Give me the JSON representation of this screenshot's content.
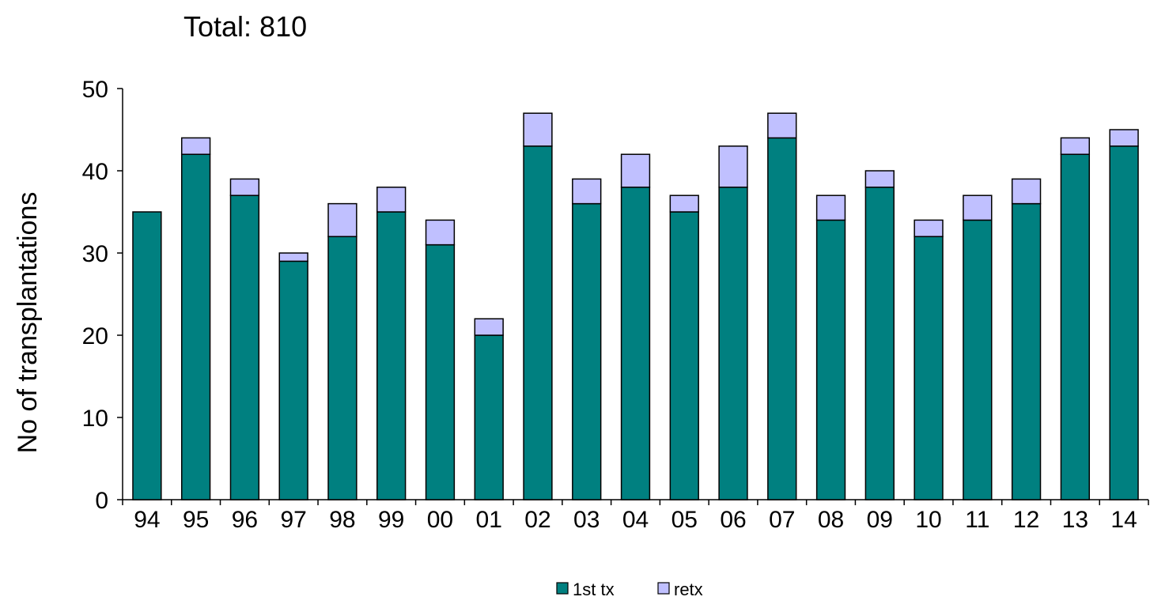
{
  "chart_data": {
    "type": "bar",
    "stacked": true,
    "title": "Total: 810",
    "xlabel": "",
    "ylabel": "No of transplantations",
    "ylim": [
      0,
      50
    ],
    "yticks": [
      0,
      10,
      20,
      30,
      40,
      50
    ],
    "grid": false,
    "legend_position": "bottom",
    "categories": [
      "94",
      "95",
      "96",
      "97",
      "98",
      "99",
      "00",
      "01",
      "02",
      "03",
      "04",
      "05",
      "06",
      "07",
      "08",
      "09",
      "10",
      "11",
      "12",
      "13",
      "14"
    ],
    "series": [
      {
        "name": "1st tx",
        "color": "#008080",
        "values": [
          35,
          42,
          37,
          29,
          32,
          35,
          31,
          20,
          43,
          36,
          38,
          35,
          38,
          44,
          34,
          38,
          32,
          34,
          36,
          42,
          43
        ]
      },
      {
        "name": "retx",
        "color": "#c0c0ff",
        "values": [
          0,
          2,
          2,
          1,
          4,
          3,
          3,
          2,
          4,
          3,
          4,
          2,
          5,
          3,
          3,
          2,
          2,
          3,
          3,
          2,
          2
        ]
      }
    ]
  }
}
